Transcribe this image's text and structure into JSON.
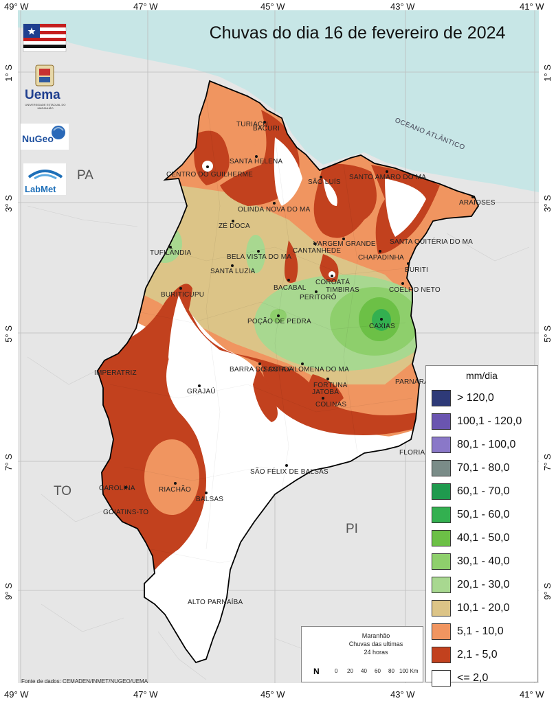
{
  "title": "Chuvas do dia 16 de fevereiro de 2024",
  "coordinates": {
    "top": [
      "49° W",
      "47° W",
      "45° W",
      "43° W",
      "41° W"
    ],
    "bottom": [
      "49° W",
      "47° W",
      "45° W",
      "43° W",
      "41° W"
    ],
    "left": [
      "1° S",
      "3° S",
      "5° S",
      "7° S",
      "9° S"
    ],
    "right": [
      "1° S",
      "3° S",
      "5° S",
      "7° S",
      "9° S"
    ]
  },
  "regions": {
    "pa": "PA",
    "to": "TO",
    "pi": "PI"
  },
  "ocean_label": "OCEANO ATLÂNTICO",
  "logos": {
    "uema": "Uema",
    "uema_sub": "UNIVERSIDADE ESTADUAL DO MARANHÃO",
    "nugeo": "NuGeo",
    "labmet": "LabMet"
  },
  "cities": [
    {
      "name": "TURIAÇU"
    },
    {
      "name": "BACURI"
    },
    {
      "name": "SANTA HELENA"
    },
    {
      "name": "CENTRO DO GUILHERME"
    },
    {
      "name": "SÃO LUÍS"
    },
    {
      "name": "SANTO AMARO DO MA"
    },
    {
      "name": "ARAIOSES"
    },
    {
      "name": "OLINDA NOVA DO MA"
    },
    {
      "name": "ZÉ DOCA"
    },
    {
      "name": "SANTA QUITÉRIA DO MA"
    },
    {
      "name": "VARGEM GRANDE"
    },
    {
      "name": "CANTANHEDE"
    },
    {
      "name": "TUFILÂNDIA"
    },
    {
      "name": "BELA VISTA DO MA"
    },
    {
      "name": "CHAPADINHA"
    },
    {
      "name": "SANTA LUZIA"
    },
    {
      "name": "BURITI"
    },
    {
      "name": "COROATÁ"
    },
    {
      "name": "BACABAL"
    },
    {
      "name": "TIMBIRAS"
    },
    {
      "name": "COELHO NETO"
    },
    {
      "name": "BURITICUPU"
    },
    {
      "name": "PERITORÓ"
    },
    {
      "name": "POÇÃO DE PEDRA"
    },
    {
      "name": "CAXIAS"
    },
    {
      "name": "BARRA DO CORDA"
    },
    {
      "name": "SANTA FILOMENA DO MA"
    },
    {
      "name": "IMPERATRIZ"
    },
    {
      "name": "FORTUNA"
    },
    {
      "name": "JATOBÁ"
    },
    {
      "name": "PARNARAMA"
    },
    {
      "name": "GRAJAÚ"
    },
    {
      "name": "COLINAS"
    },
    {
      "name": "FLORIANO-PI"
    },
    {
      "name": "SÃO FÉLIX DE BALSAS"
    },
    {
      "name": "CAROLINA"
    },
    {
      "name": "RIACHÃO"
    },
    {
      "name": "BALSAS"
    },
    {
      "name": "GOIATINS-TO"
    },
    {
      "name": "ALTO PARNAÍBA"
    }
  ],
  "legend": {
    "title": "mm/dia",
    "items": [
      {
        "label": "> 120,0",
        "color": "#2e3a78"
      },
      {
        "label": "100,1 - 120,0",
        "color": "#6a55b0"
      },
      {
        "label": "80,1 - 100,0",
        "color": "#8a78c8"
      },
      {
        "label": "70,1 - 80,0",
        "color": "#7a8c88"
      },
      {
        "label": "60,1 - 70,0",
        "color": "#1f9a4e"
      },
      {
        "label": "50,1 - 60,0",
        "color": "#33b050"
      },
      {
        "label": "40,1 - 50,0",
        "color": "#6cc046"
      },
      {
        "label": "30,1 - 40,0",
        "color": "#8ecf6c"
      },
      {
        "label": "20,1 - 30,0",
        "color": "#a8d890"
      },
      {
        "label": "10,1 - 20,0",
        "color": "#dcc487"
      },
      {
        "label": "5,1 - 10,0",
        "color": "#f09560"
      },
      {
        "label": "2,1 - 5,0",
        "color": "#c2411e"
      },
      {
        "label": "<= 2,0",
        "color": "#ffffff"
      }
    ]
  },
  "info": {
    "line1": "Maranhão",
    "line2": "Chuvas das ultimas",
    "line3": "24 horas",
    "north": "N",
    "scale": [
      "0",
      "20",
      "40",
      "60",
      "80",
      "100 Km"
    ]
  },
  "source": "Fonte de dados: CEMADEN/INMET/NUGEO/UEMA",
  "colors": {
    "ocean": "#c7e6e6",
    "land": "#e6e6e6"
  }
}
